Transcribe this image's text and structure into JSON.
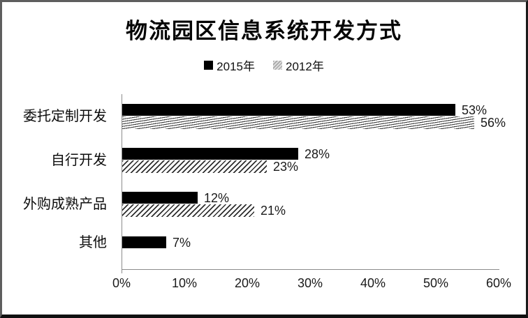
{
  "chart_data": {
    "type": "bar",
    "orientation": "horizontal",
    "title": "物流园区信息系统开发方式",
    "categories": [
      "委托定制开发",
      "自行开发",
      "外购成熟产品",
      "其他"
    ],
    "series": [
      {
        "name": "2015年",
        "style": "solid",
        "color": "#000000",
        "values": [
          53,
          28,
          12,
          7
        ]
      },
      {
        "name": "2012年",
        "style": "hatched",
        "color": "#9a9a9a",
        "values": [
          56,
          23,
          21,
          null
        ]
      }
    ],
    "value_suffix": "%",
    "xlim": [
      0,
      60
    ],
    "x_ticks": [
      "0%",
      "10%",
      "20%",
      "30%",
      "40%",
      "50%",
      "60%"
    ],
    "legend_position": "top-center",
    "grid": false,
    "axis_color": "#8c8c8c",
    "text_color": "#1a1a1a"
  }
}
